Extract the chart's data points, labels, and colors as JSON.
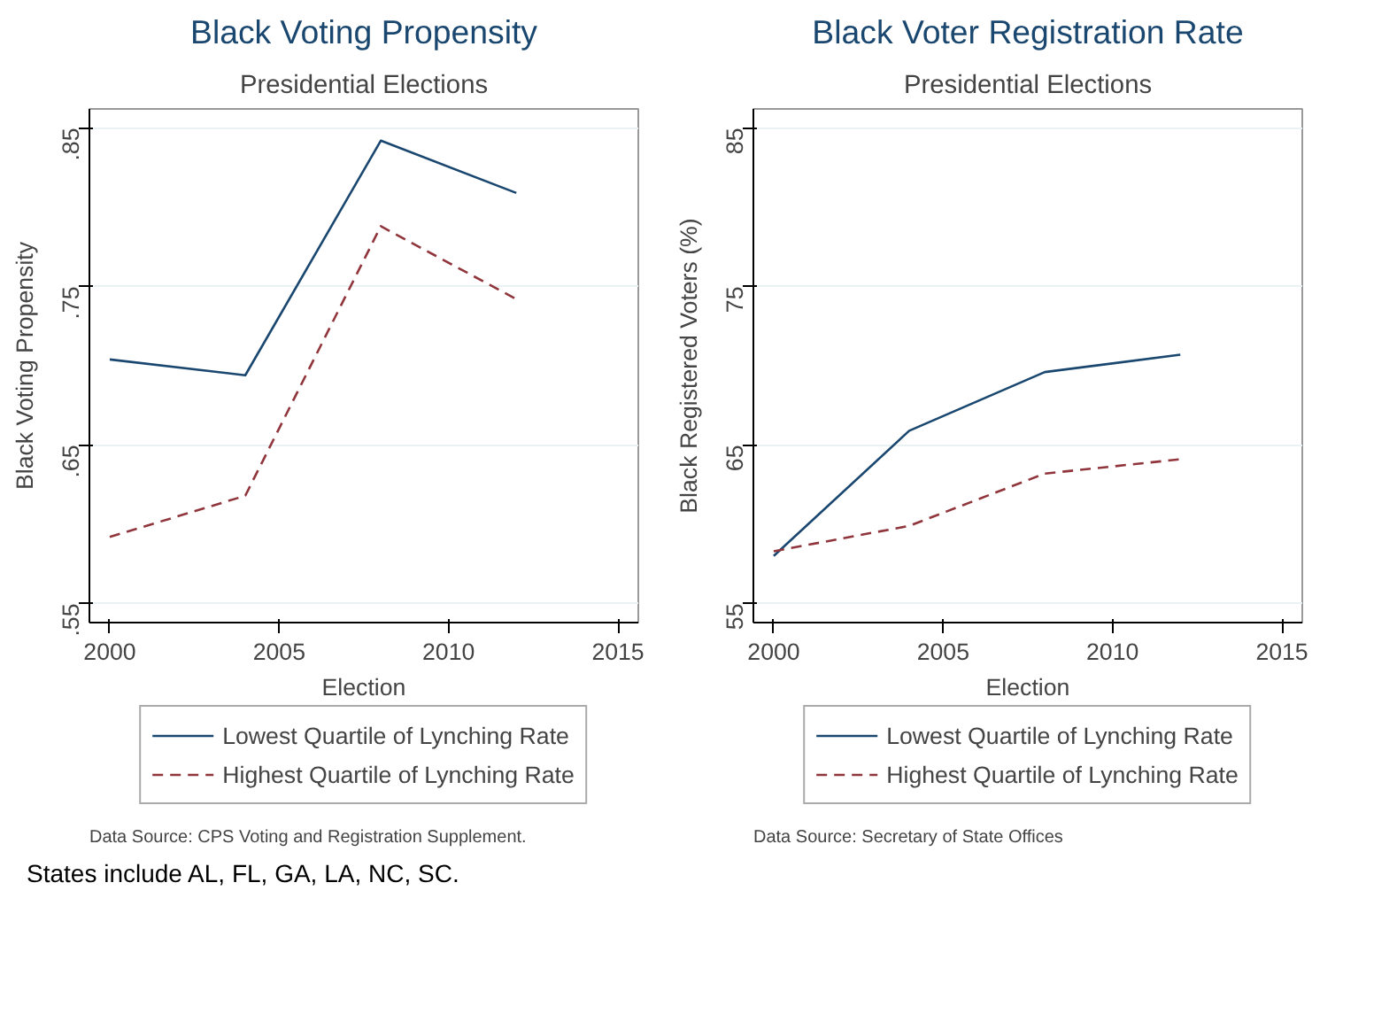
{
  "chart_data": [
    {
      "type": "line",
      "title": "Black Voting Propensity",
      "subtitle": "Presidential Elections",
      "xlabel": "Election",
      "ylabel": "Black Voting Propensity",
      "x": [
        2000,
        2004,
        2008,
        2012
      ],
      "xlim": [
        1999.4,
        2015.6
      ],
      "xticks": [
        2000,
        2005,
        2010,
        2015
      ],
      "ylim": [
        0.538,
        0.862
      ],
      "yticks": [
        {
          "value": 0.55,
          "label": ".55"
        },
        {
          "value": 0.65,
          "label": ".65"
        },
        {
          "value": 0.75,
          "label": ".75"
        },
        {
          "value": 0.85,
          "label": ".85"
        }
      ],
      "grid": "y",
      "legend": "bottom",
      "series": [
        {
          "name": "Lowest Quartile of Lynching Rate",
          "color": "#1a476f",
          "line_style": "solid",
          "values": [
            0.704,
            0.694,
            0.842,
            0.809
          ]
        },
        {
          "name": "Highest Quartile of Lynching Rate",
          "color": "#90353b",
          "line_style": "dashed",
          "values": [
            0.592,
            0.618,
            0.788,
            0.742
          ]
        }
      ],
      "annotations": [
        "Data Source: CPS Voting and Registration Supplement."
      ]
    },
    {
      "type": "line",
      "title": "Black Voter Registration Rate",
      "subtitle": "Presidential Elections",
      "xlabel": "Election",
      "ylabel": "Black Registered Voters (%)",
      "x": [
        2000,
        2004,
        2008,
        2012
      ],
      "xlim": [
        1999.4,
        2015.6
      ],
      "xticks": [
        2000,
        2005,
        2010,
        2015
      ],
      "ylim": [
        53.8,
        86.2
      ],
      "yticks": [
        55,
        65,
        75,
        85
      ],
      "grid": "y",
      "legend": "bottom",
      "series": [
        {
          "name": "Lowest Quartile of Lynching Rate",
          "color": "#1a476f",
          "line_style": "solid",
          "values": [
            58.0,
            65.9,
            69.6,
            70.7
          ]
        },
        {
          "name": "Highest Quartile of Lynching Rate",
          "color": "#90353b",
          "line_style": "dashed",
          "values": [
            58.3,
            59.9,
            63.2,
            64.1
          ]
        }
      ],
      "annotations": [
        "Data Source: Secretary of State Offices",
        "States include AL, FL, GA, LA, NC, SC."
      ]
    }
  ]
}
